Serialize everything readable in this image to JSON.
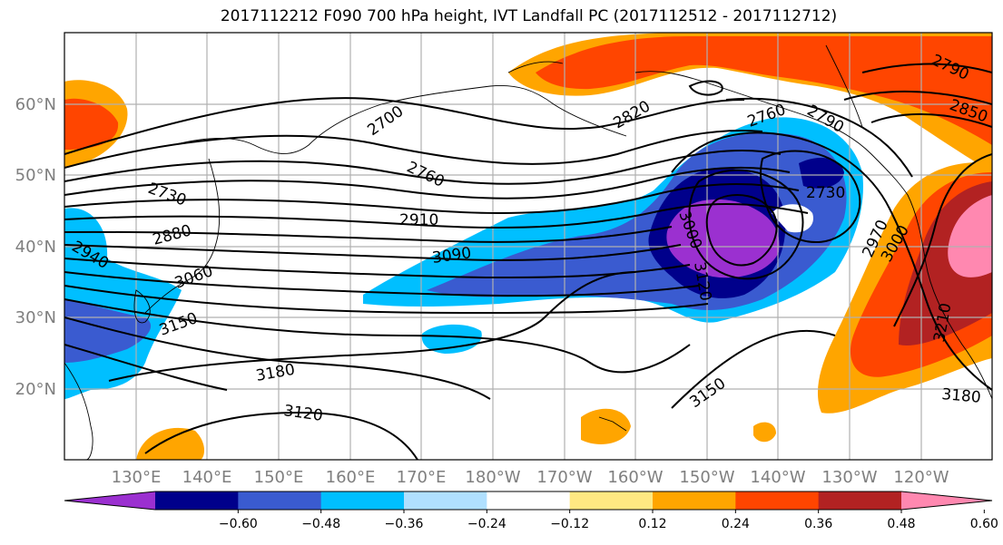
{
  "title": "2017112212 F090 700 hPa height, IVT Landfall PC (2017112512 - 2017112712)",
  "lon_labels": [
    "130°E",
    "140°E",
    "150°E",
    "160°E",
    "170°E",
    "180°W",
    "170°W",
    "160°W",
    "150°W",
    "140°W",
    "130°W",
    "120°W"
  ],
  "lat_labels": [
    "60°N",
    "50°N",
    "40°N",
    "30°N",
    "20°N"
  ],
  "colorbar": {
    "colors": [
      "#9b30d0",
      "#00008b",
      "#3a5bd0",
      "#00bfff",
      "#b0e0ff",
      "#ffffff",
      "#ffe882",
      "#ffa500",
      "#ff4500",
      "#b22222",
      "#ff88b0"
    ],
    "ticks": [
      "−0.60",
      "−0.48",
      "−0.36",
      "−0.24",
      "−0.12",
      "0.12",
      "0.24",
      "0.36",
      "0.48",
      "0.60"
    ]
  },
  "contour_labels": [
    {
      "text": "2700",
      "ref": "c1"
    },
    {
      "text": "2760",
      "ref": "c2"
    },
    {
      "text": "2730",
      "ref": "c3"
    },
    {
      "text": "2880",
      "ref": "c4"
    },
    {
      "text": "2910",
      "ref": "c5"
    },
    {
      "text": "3090",
      "ref": "c6"
    },
    {
      "text": "3060",
      "ref": "c7"
    },
    {
      "text": "3150",
      "ref": "c8"
    },
    {
      "text": "3180",
      "ref": "c9"
    },
    {
      "text": "3120",
      "ref": "c10"
    },
    {
      "text": "2820",
      "ref": "c11"
    },
    {
      "text": "2760",
      "ref": "c12"
    },
    {
      "text": "2790",
      "ref": "c13"
    },
    {
      "text": "2730",
      "ref": "c14"
    },
    {
      "text": "2790",
      "ref": "c15"
    },
    {
      "text": "2850",
      "ref": "c16"
    },
    {
      "text": "3150",
      "ref": "c17"
    },
    {
      "text": "3180",
      "ref": "c18"
    },
    {
      "text": "3210",
      "ref": "c19"
    },
    {
      "text": "2940",
      "ref": "c20"
    },
    {
      "text": "2970",
      "ref": "c21"
    },
    {
      "text": "3000",
      "ref": "c22"
    },
    {
      "text": "3120",
      "ref": "c23"
    },
    {
      "text": "3000",
      "ref": "c24"
    }
  ]
}
